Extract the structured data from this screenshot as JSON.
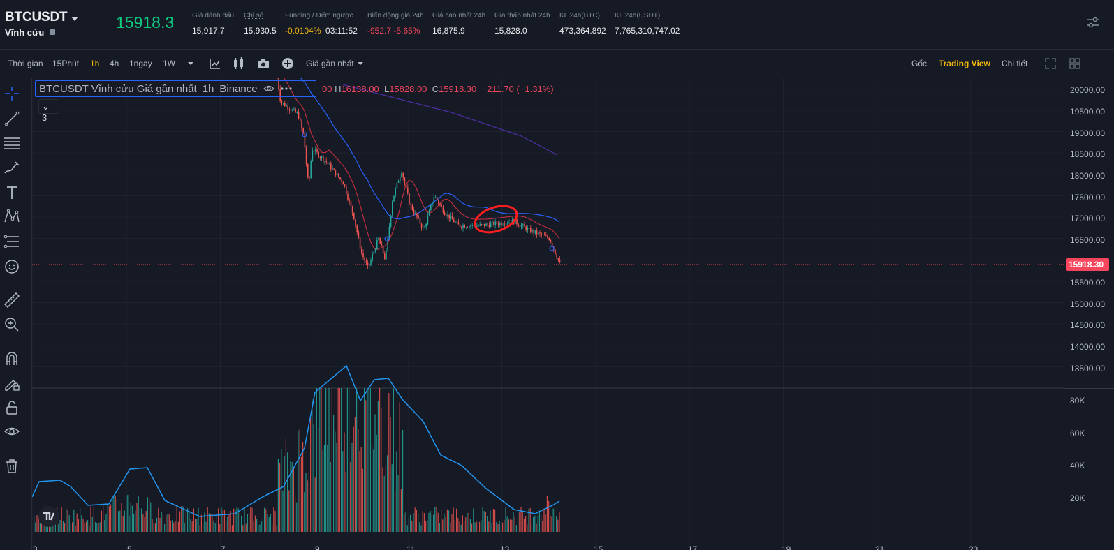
{
  "header": {
    "symbol": "BTCUSDT",
    "contract_type": "Vĩnh cửu",
    "last_price": "15918.3",
    "stats": [
      {
        "label": "Giá đánh dấu",
        "value": "15,917.7"
      },
      {
        "label": "Chỉ số",
        "value": "15,930.5"
      },
      {
        "label": "Funding / Đếm ngược",
        "value": "-0.0104%",
        "value2": "03:11:52"
      },
      {
        "label": "Biến động giá 24h",
        "value": "-952.7 -5.65%"
      },
      {
        "label": "Giá cao nhất 24h",
        "value": "16,875.9"
      },
      {
        "label": "Giá thấp nhất 24h",
        "value": "15,828.0"
      },
      {
        "label": "KL 24h(BTC)",
        "value": "473,364.892"
      },
      {
        "label": "KL 24h(USDT)",
        "value": "7,765,310,747.02"
      }
    ]
  },
  "toolbar": {
    "time_label": "Thời gian",
    "intervals": [
      "15Phút",
      "1h",
      "4h",
      "1ngày",
      "1W"
    ],
    "active_interval": "1h",
    "price_type": "Giá gần nhất",
    "view_tabs": [
      "Gốc",
      "Trading View",
      "Chi tiết"
    ],
    "active_view": "Trading View"
  },
  "legend": {
    "title": "BTCUSDT Vĩnh cửu Giá gần nhất",
    "interval": "1h",
    "exchange": "Binance",
    "ohlc_prefix": "00",
    "high_label": "H",
    "high": "16138.00",
    "low_label": "L",
    "low": "15828.00",
    "close_label": "C",
    "close": "15918.30",
    "change": "−211.70 (−1.31%)",
    "collapsed_count": "3"
  },
  "price_axis": {
    "labels": [
      "20000.00",
      "19500.00",
      "19000.00",
      "18500.00",
      "18000.00",
      "17500.00",
      "17000.00",
      "16500.00",
      "15500.00",
      "15000.00",
      "14500.00",
      "14000.00",
      "13500.00"
    ],
    "current_price_tag": "15918.30",
    "volume_labels": [
      "80K",
      "60K",
      "40K",
      "20K"
    ]
  },
  "time_axis": {
    "labels": [
      "3",
      "5",
      "7",
      "9",
      "11",
      "13",
      "15",
      "17",
      "19",
      "21",
      "23"
    ]
  },
  "chart_data": {
    "type": "candlestick",
    "ylim": [
      13000,
      20250
    ],
    "current_price": 15918.3,
    "colors": {
      "up": "#26a69a",
      "down": "#ef5350",
      "ma_fast": "#e0384a",
      "ma_slow": "#2962ff",
      "ma_long": "#4a2d9e",
      "volume_ma": "#2196f3"
    }
  },
  "colors": {
    "background": "#161a25",
    "accent": "#f0b90b",
    "green": "#0ecb81",
    "red": "#f6465d"
  }
}
